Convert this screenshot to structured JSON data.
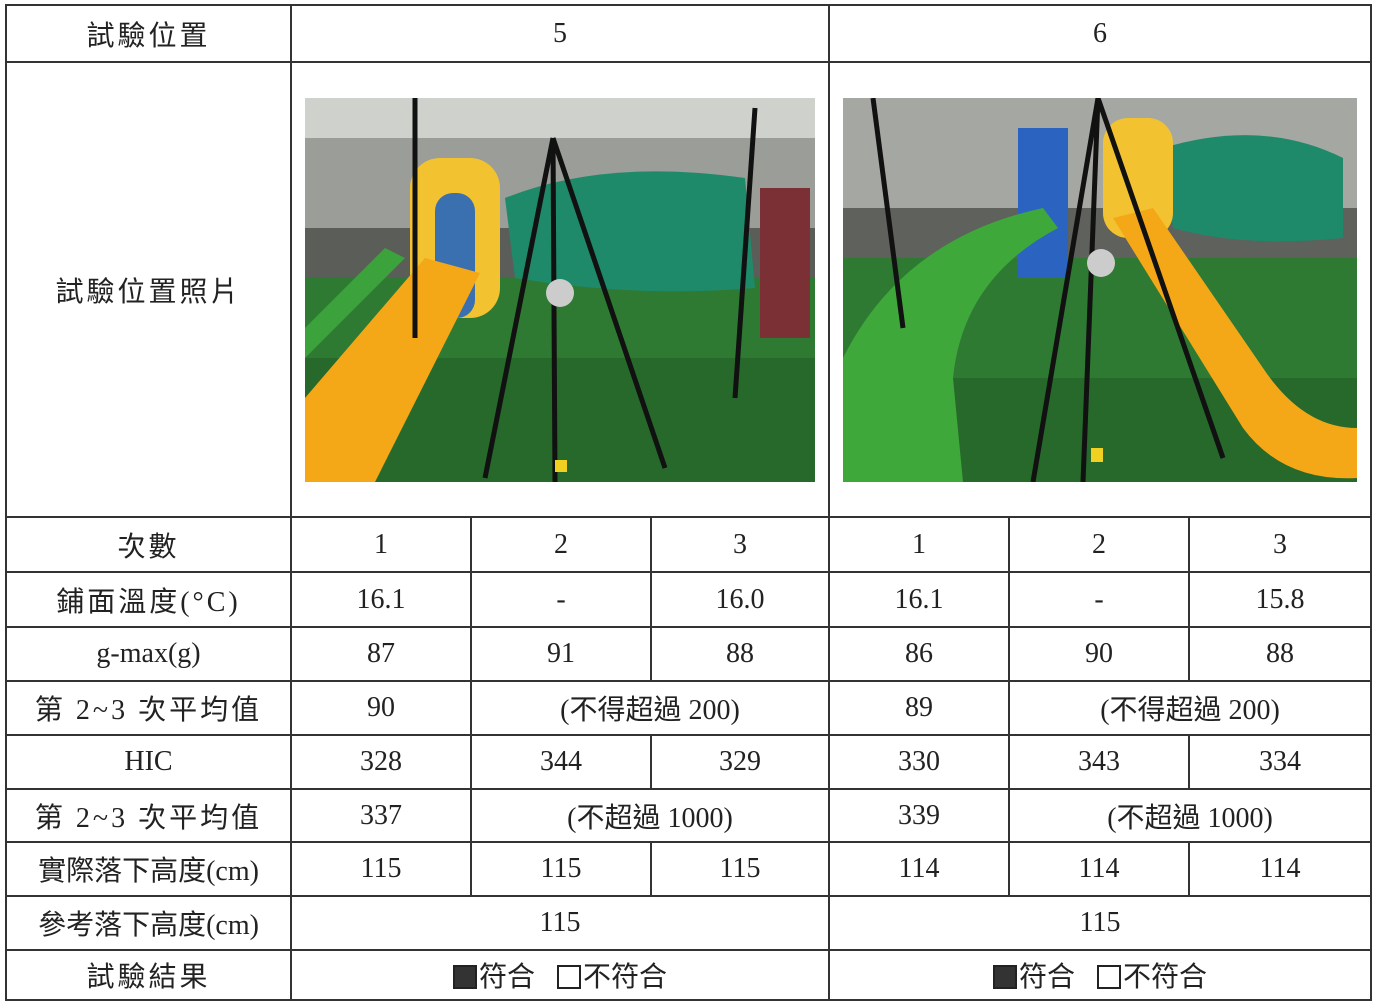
{
  "header": {
    "label": "試驗位置",
    "positions": [
      "5",
      "6"
    ]
  },
  "photo_label": "試驗位置照片",
  "trials": {
    "label": "次數",
    "values": [
      "1",
      "2",
      "3",
      "1",
      "2",
      "3"
    ]
  },
  "temperature": {
    "label": "鋪面溫度(°C)",
    "values": [
      "16.1",
      "-",
      "16.0",
      "16.1",
      "-",
      "15.8"
    ]
  },
  "gmax": {
    "label": "g-max(g)",
    "values": [
      "87",
      "91",
      "88",
      "86",
      "90",
      "88"
    ]
  },
  "gmax_avg": {
    "label": "第 2~3 次平均值",
    "values": [
      "90",
      "89"
    ],
    "limit": "(不得超過 200)"
  },
  "hic": {
    "label": "HIC",
    "values": [
      "328",
      "344",
      "329",
      "330",
      "343",
      "334"
    ]
  },
  "hic_avg": {
    "label": "第 2~3 次平均值",
    "values": [
      "337",
      "339"
    ],
    "limit": "(不超過 1000)"
  },
  "actual_height": {
    "label": "實際落下高度(cm)",
    "values": [
      "115",
      "115",
      "115",
      "114",
      "114",
      "114"
    ]
  },
  "reference_height": {
    "label": "參考落下高度(cm)",
    "values": [
      "115",
      "115"
    ]
  },
  "result": {
    "label": "試驗結果",
    "pass": "符合",
    "fail": "不符合"
  }
}
